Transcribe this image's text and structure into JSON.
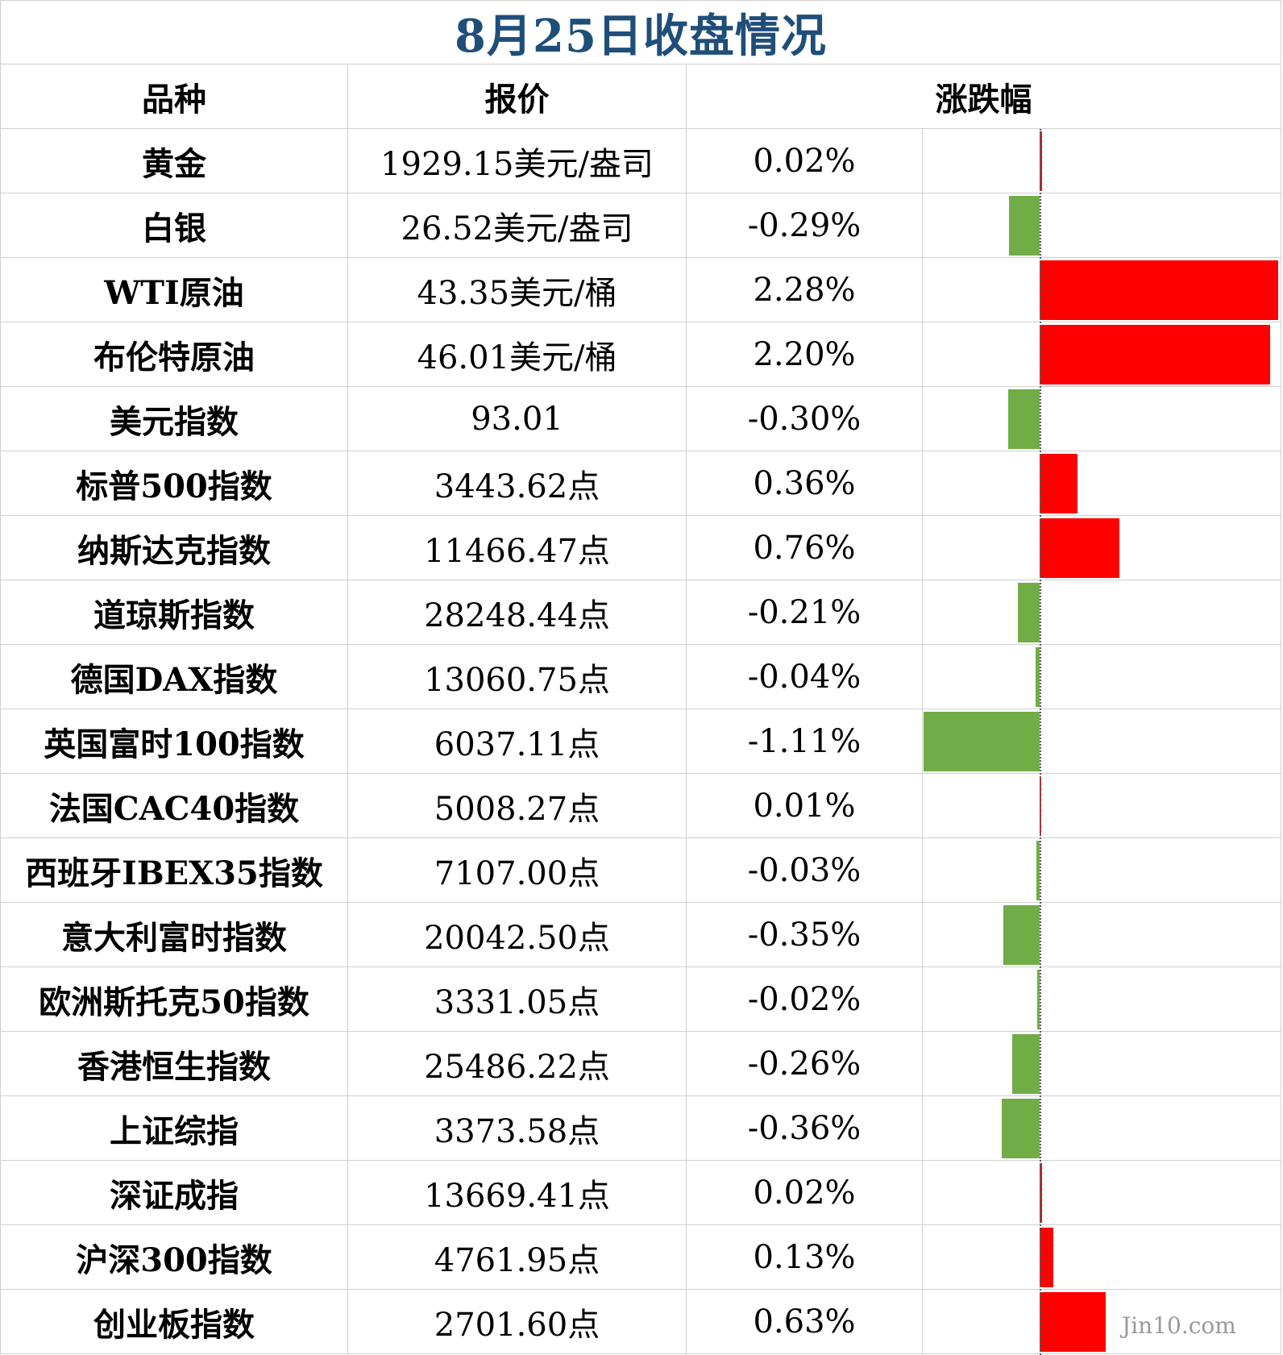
{
  "title": "8月25日收盘情况",
  "headers": {
    "name": "品种",
    "price": "报价",
    "change": "涨跌幅"
  },
  "rows": [
    {
      "name": "黄金",
      "price": "1929.15美元/盎司",
      "change": "0.02%",
      "value": 0.02
    },
    {
      "name": "白银",
      "price": "26.52美元/盎司",
      "change": "-0.29%",
      "value": -0.29
    },
    {
      "name": "WTI原油",
      "price": "43.35美元/桶",
      "change": "2.28%",
      "value": 2.28
    },
    {
      "name": "布伦特原油",
      "price": "46.01美元/桶",
      "change": "2.20%",
      "value": 2.2
    },
    {
      "name": "美元指数",
      "price": "93.01",
      "change": "-0.30%",
      "value": -0.3
    },
    {
      "name": "标普500指数",
      "price": "3443.62点",
      "change": "0.36%",
      "value": 0.36
    },
    {
      "name": "纳斯达克指数",
      "price": "11466.47点",
      "change": "0.76%",
      "value": 0.76
    },
    {
      "name": "道琼斯指数",
      "price": "28248.44点",
      "change": "-0.21%",
      "value": -0.21
    },
    {
      "name": "德国DAX指数",
      "price": "13060.75点",
      "change": "-0.04%",
      "value": -0.04
    },
    {
      "name": "英国富时100指数",
      "price": "6037.11点",
      "change": "-1.11%",
      "value": -1.11
    },
    {
      "name": "法国CAC40指数",
      "price": "5008.27点",
      "change": "0.01%",
      "value": 0.01
    },
    {
      "name": "西班牙IBEX35指数",
      "price": "7107.00点",
      "change": "-0.03%",
      "value": -0.03
    },
    {
      "name": "意大利富时指数",
      "price": "20042.50点",
      "change": "-0.35%",
      "value": -0.35
    },
    {
      "name": "欧洲斯托克50指数",
      "price": "3331.05点",
      "change": "-0.02%",
      "value": -0.02
    },
    {
      "name": "香港恒生指数",
      "price": "25486.22点",
      "change": "-0.26%",
      "value": -0.26
    },
    {
      "name": "上证综指",
      "price": "3373.58点",
      "change": "-0.36%",
      "value": -0.36
    },
    {
      "name": "深证成指",
      "price": "13669.41点",
      "change": "0.02%",
      "value": 0.02
    },
    {
      "name": "沪深300指数",
      "price": "4761.95点",
      "change": "0.13%",
      "value": 0.13
    },
    {
      "name": "创业板指数",
      "price": "2701.60点",
      "change": "0.63%",
      "value": 0.63
    }
  ],
  "colors": {
    "up": "#ff0000",
    "down": "#70ad47",
    "title": "#1f4e79"
  },
  "watermark": "Jin10.com"
}
